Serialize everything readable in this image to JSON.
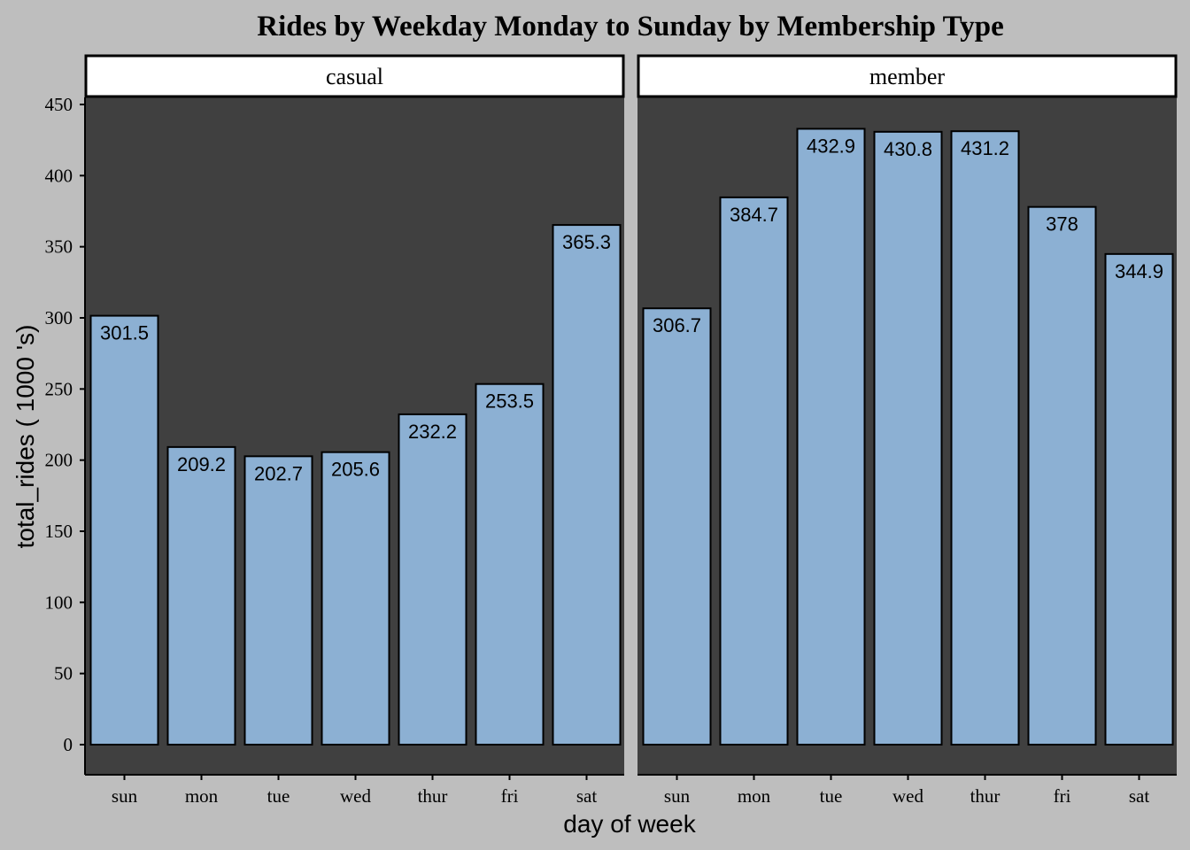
{
  "chart_data": {
    "type": "bar",
    "title": "Rides by Weekday Monday to Sunday by Membership Type",
    "xlabel": "day of week",
    "ylabel": "total_rides ( 1000 's)",
    "ylim": [
      0,
      450
    ],
    "yticks": [
      0,
      50,
      100,
      150,
      200,
      250,
      300,
      350,
      400,
      450
    ],
    "categories": [
      "sun",
      "mon",
      "tue",
      "wed",
      "thur",
      "fri",
      "sat"
    ],
    "grid": false,
    "legend": "none",
    "colors": {
      "background": "#bebebe",
      "panel": "#404040",
      "bar_fill": "#8cb0d3",
      "bar_stroke": "#000000",
      "strip_fill": "#ffffff"
    },
    "facets": [
      {
        "name": "casual",
        "values": [
          301.5,
          209.2,
          202.7,
          205.6,
          232.2,
          253.5,
          365.3
        ],
        "labels": [
          "301.5",
          "209.2",
          "202.7",
          "205.6",
          "232.2",
          "253.5",
          "365.3"
        ]
      },
      {
        "name": "member",
        "values": [
          306.7,
          384.7,
          432.9,
          430.8,
          431.2,
          378,
          344.9
        ],
        "labels": [
          "306.7",
          "384.7",
          "432.9",
          "430.8",
          "431.2",
          "378",
          "344.9"
        ]
      }
    ]
  }
}
